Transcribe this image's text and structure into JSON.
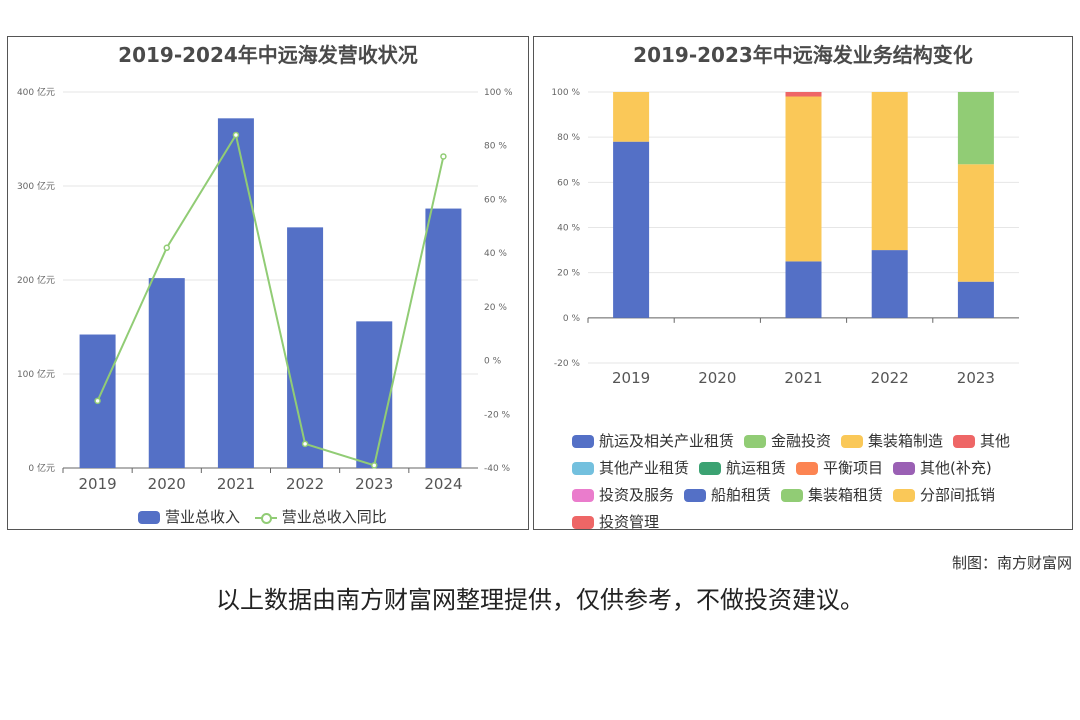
{
  "charts": {
    "left": {
      "title": "2019-2024年中远海发营收状况",
      "legend": {
        "bar": "营业总收入",
        "line": "营业总收入同比"
      }
    },
    "right": {
      "title": "2019-2023年中远海发业务结构变化",
      "legend": [
        "航运及相关产业租赁",
        "金融投资",
        "集装箱制造",
        "其他",
        "其他产业租赁",
        "航运租赁",
        "平衡项目",
        "其他(补充)",
        "投资及服务",
        "船舶租赁",
        "集装箱租赁",
        "分部间抵销",
        "投资管理"
      ]
    }
  },
  "chart_data": [
    {
      "type": "bar",
      "title": "2019-2024年中远海发营收状况",
      "categories": [
        "2019",
        "2020",
        "2021",
        "2022",
        "2023",
        "2024"
      ],
      "y_left_ticks": [
        "0 亿元",
        "100 亿元",
        "200 亿元",
        "300 亿元",
        "400 亿元"
      ],
      "y_right_ticks": [
        "-40 %",
        "-20 %",
        "0 %",
        "20 %",
        "40 %",
        "60 %",
        "80 %",
        "100 %"
      ],
      "ylim_left": [
        0,
        400
      ],
      "ylim_right": [
        -40,
        100
      ],
      "series": [
        {
          "name": "营业总收入",
          "type": "bar",
          "axis": "left",
          "color": "#5470c6",
          "values": [
            142,
            202,
            372,
            256,
            156,
            276
          ]
        },
        {
          "name": "营业总收入同比",
          "type": "line",
          "axis": "right",
          "color": "#91cc75",
          "values": [
            -15,
            42,
            84,
            -31,
            -39,
            76
          ]
        }
      ]
    },
    {
      "type": "bar",
      "stacked": true,
      "title": "2019-2023年中远海发业务结构变化",
      "categories": [
        "2019",
        "2020",
        "2021",
        "2022",
        "2023"
      ],
      "y_ticks": [
        "-20 %",
        "0 %",
        "20 %",
        "40 %",
        "60 %",
        "80 %",
        "100 %"
      ],
      "ylim": [
        -20,
        100
      ],
      "series": [
        {
          "name": "航运及相关产业租赁",
          "color": "#5470c6",
          "values": [
            78,
            0,
            25,
            30,
            0
          ]
        },
        {
          "name": "船舶租赁",
          "color": "#5470c6",
          "values": [
            0,
            0,
            0,
            0,
            16
          ]
        },
        {
          "name": "集装箱制造",
          "color": "#fac858",
          "values": [
            22,
            0,
            73,
            70,
            0
          ]
        },
        {
          "name": "分部间抵销",
          "color": "#fac858",
          "values": [
            0,
            0,
            0,
            0,
            52
          ]
        },
        {
          "name": "其他",
          "color": "#ee6666",
          "values": [
            0,
            0,
            2,
            0,
            0
          ]
        },
        {
          "name": "集装箱租赁",
          "color": "#91cc75",
          "values": [
            0,
            0,
            0,
            0,
            32
          ]
        }
      ]
    }
  ],
  "footer": {
    "credit": "制图：南方财富网",
    "disclaimer": "以上数据由南方财富网整理提供，仅供参考，不做投资建议。"
  }
}
